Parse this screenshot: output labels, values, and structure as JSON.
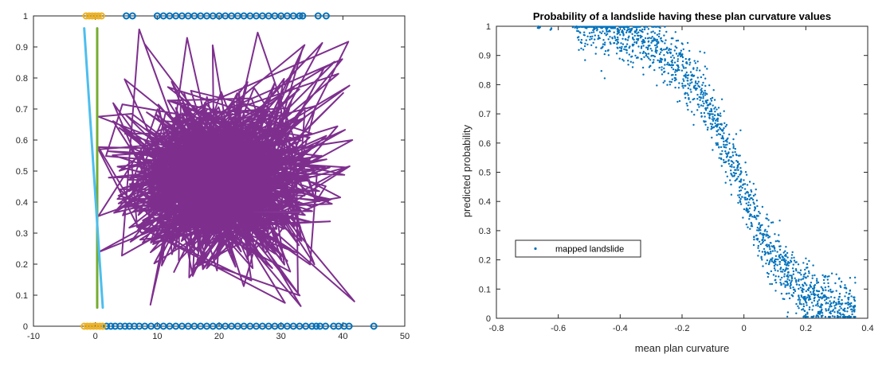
{
  "chart_data": [
    {
      "type": "line",
      "title": "",
      "xlabel": "",
      "ylabel": "",
      "xlim": [
        -10,
        50
      ],
      "ylim": [
        0,
        1
      ],
      "xticks": [
        "-10",
        "0",
        "10",
        "20",
        "30",
        "40",
        "50"
      ],
      "yticks": [
        "0",
        "0.1",
        "0.2",
        "0.3",
        "0.4",
        "0.5",
        "0.6",
        "0.7",
        "0.8",
        "0.9",
        "1"
      ],
      "grid": false,
      "legend": "none",
      "colors": {
        "markers_blue": "#0072BD",
        "markers_yellow": "#EDB120",
        "tangle_purple": "#7E2F8E",
        "line_green": "#77AC30",
        "line_cyan": "#4DBEEE"
      },
      "series": [
        {
          "kind": "markers",
          "color": "#0072BD",
          "x": [
            1.8,
            2.5,
            3.2,
            4.0,
            4.8,
            5.5,
            6.3,
            7.1,
            8.0,
            9.0,
            10.0,
            11.0,
            12.0,
            13.0,
            14.0,
            15.0,
            16.0,
            17.0,
            18.0,
            19.0,
            20.0,
            21.0,
            22.0,
            23.0,
            24.0,
            25.0,
            26.0,
            27.0,
            28.0,
            29.0,
            30.0,
            31.0,
            32.0,
            33.0,
            34.0,
            35.0,
            35.7,
            36.3,
            37.2,
            38.5,
            39.3,
            40.2,
            41.0,
            45.0
          ],
          "y": [
            0,
            0,
            0,
            0,
            0,
            0,
            0,
            0,
            0,
            0,
            0,
            0,
            0,
            0,
            0,
            0,
            0,
            0,
            0,
            0,
            0,
            0,
            0,
            0,
            0,
            0,
            0,
            0,
            0,
            0,
            0,
            0,
            0,
            0,
            0,
            0,
            0,
            0,
            0,
            0,
            0,
            0,
            0,
            0
          ]
        },
        {
          "kind": "markers",
          "color": "#EDB120",
          "x": [
            -1.8,
            -1.3,
            -0.8,
            -0.3,
            0.2,
            0.7,
            1.2
          ],
          "y": [
            0,
            0,
            0,
            0,
            0,
            0,
            0
          ]
        },
        {
          "kind": "markers",
          "color": "#0072BD",
          "x": [
            5.0,
            6.0,
            10.0,
            11.0,
            12.0,
            13.0,
            14.0,
            15.0,
            16.0,
            17.0,
            18.0,
            19.0,
            20.0,
            21.0,
            22.0,
            23.0,
            24.0,
            25.0,
            26.0,
            27.0,
            28.0,
            29.0,
            30.0,
            31.0,
            32.0,
            33.0,
            33.5,
            36.0,
            37.3
          ],
          "y": [
            1,
            1,
            1,
            1,
            1,
            1,
            1,
            1,
            1,
            1,
            1,
            1,
            1,
            1,
            1,
            1,
            1,
            1,
            1,
            1,
            1,
            1,
            1,
            1,
            1,
            1,
            1,
            1,
            1
          ]
        },
        {
          "kind": "markers",
          "color": "#EDB120",
          "x": [
            -1.5,
            -1.0,
            -0.5,
            0.0,
            0.5,
            1.0
          ],
          "y": [
            1,
            1,
            1,
            1,
            1,
            1
          ]
        },
        {
          "kind": "line",
          "color": "#77AC30",
          "x": [
            0.3,
            0.3
          ],
          "y": [
            0.06,
            0.96
          ]
        },
        {
          "kind": "line",
          "color": "#4DBEEE",
          "x": [
            -1.8,
            1.2
          ],
          "y": [
            0.96,
            0.06
          ]
        },
        {
          "kind": "tangle",
          "color": "#7E2F8E",
          "x_range": [
            0.5,
            44.5
          ],
          "y_range": [
            0.06,
            0.96
          ],
          "center": [
            20,
            0.47
          ],
          "spread": [
            7,
            0.12
          ],
          "n_segments": 1400
        }
      ]
    },
    {
      "type": "scatter",
      "title": "Probability of a landslide having these plan curvature values",
      "xlabel": "mean plan curvature",
      "ylabel": "predicted probability",
      "xlim": [
        -0.8,
        0.4
      ],
      "ylim": [
        0,
        1
      ],
      "xticks": [
        "-0.8",
        "-0.6",
        "-0.4",
        "-0.2",
        "0",
        "0.2",
        "0.4"
      ],
      "yticks": [
        "0",
        "0.1",
        "0.2",
        "0.3",
        "0.4",
        "0.5",
        "0.6",
        "0.7",
        "0.8",
        "0.9",
        "1"
      ],
      "grid": false,
      "legend": "left",
      "colors": {
        "points": "#0072BD"
      },
      "series": [
        {
          "name": "mapped landslide",
          "curve": [
            [
              -0.67,
              1.0
            ],
            [
              -0.5,
              1.0
            ],
            [
              -0.4,
              0.98
            ],
            [
              -0.3,
              0.94
            ],
            [
              -0.25,
              0.9
            ],
            [
              -0.2,
              0.85
            ],
            [
              -0.15,
              0.78
            ],
            [
              -0.1,
              0.68
            ],
            [
              -0.05,
              0.57
            ],
            [
              0.0,
              0.44
            ],
            [
              0.05,
              0.3
            ],
            [
              0.1,
              0.2
            ],
            [
              0.15,
              0.14
            ],
            [
              0.2,
              0.09
            ],
            [
              0.3,
              0.04
            ],
            [
              0.36,
              0.02
            ]
          ],
          "x_range": [
            -0.67,
            0.36
          ],
          "spread": 0.05,
          "n_points": 1600
        }
      ]
    }
  ]
}
